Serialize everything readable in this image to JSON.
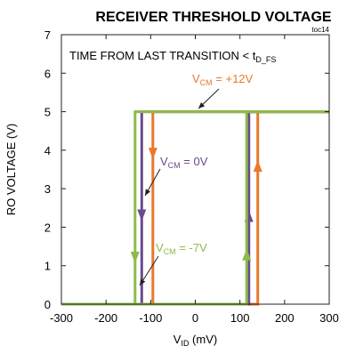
{
  "chart_data": {
    "type": "line",
    "title": "RECEIVER THRESHOLD VOLTAGE",
    "figure_id": "toc14",
    "annotation": {
      "prefix": "TIME FROM LAST TRANSITION < t",
      "sub": "D_FS"
    },
    "xlabel": {
      "main": "V",
      "sub": "ID",
      "suffix": " (mV)"
    },
    "ylabel": "RO VOLTAGE (V)",
    "xlim": [
      -300,
      300
    ],
    "ylim": [
      0,
      7
    ],
    "xticks": [
      -300,
      -200,
      -100,
      0,
      100,
      200,
      300
    ],
    "yticks": [
      0,
      1,
      2,
      3,
      4,
      5,
      6,
      7
    ],
    "grid": false,
    "series": [
      {
        "name": {
          "main": "V",
          "sub": "CM",
          "suffix": " = +12V"
        },
        "color": "#e8792b",
        "falling": {
          "x": [
            300,
            -95,
            -95,
            -300
          ],
          "y": [
            5,
            5,
            0,
            0
          ]
        },
        "rising": {
          "x": [
            -300,
            140,
            140,
            300
          ],
          "y": [
            0,
            0,
            5,
            5
          ]
        },
        "arrows": [
          {
            "x": -95,
            "y": 3.9,
            "dir": "down"
          },
          {
            "x": 140,
            "y": 3.6,
            "dir": "up"
          }
        ]
      },
      {
        "name": {
          "main": "V",
          "sub": "CM",
          "suffix": " = 0V"
        },
        "color": "#6a4a8c",
        "falling": {
          "x": [
            300,
            -120,
            -120,
            -300
          ],
          "y": [
            5,
            5,
            0,
            0
          ]
        },
        "rising": {
          "x": [
            -300,
            120,
            120,
            300
          ],
          "y": [
            0,
            0,
            5,
            5
          ]
        },
        "arrows": [
          {
            "x": -120,
            "y": 2.3,
            "dir": "down"
          },
          {
            "x": 120,
            "y": 2.3,
            "dir": "up"
          }
        ]
      },
      {
        "name": {
          "main": "V",
          "sub": "CM",
          "suffix": " = -7V"
        },
        "color": "#8cbc4a",
        "falling": {
          "x": [
            300,
            -135,
            -135,
            -300
          ],
          "y": [
            5,
            5,
            0,
            0
          ]
        },
        "rising": {
          "x": [
            -300,
            115,
            115,
            300
          ],
          "y": [
            0,
            0,
            5,
            5
          ]
        },
        "arrows": [
          {
            "x": -135,
            "y": 1.2,
            "dir": "down"
          },
          {
            "x": 115,
            "y": 1.3,
            "dir": "up"
          }
        ]
      }
    ]
  }
}
